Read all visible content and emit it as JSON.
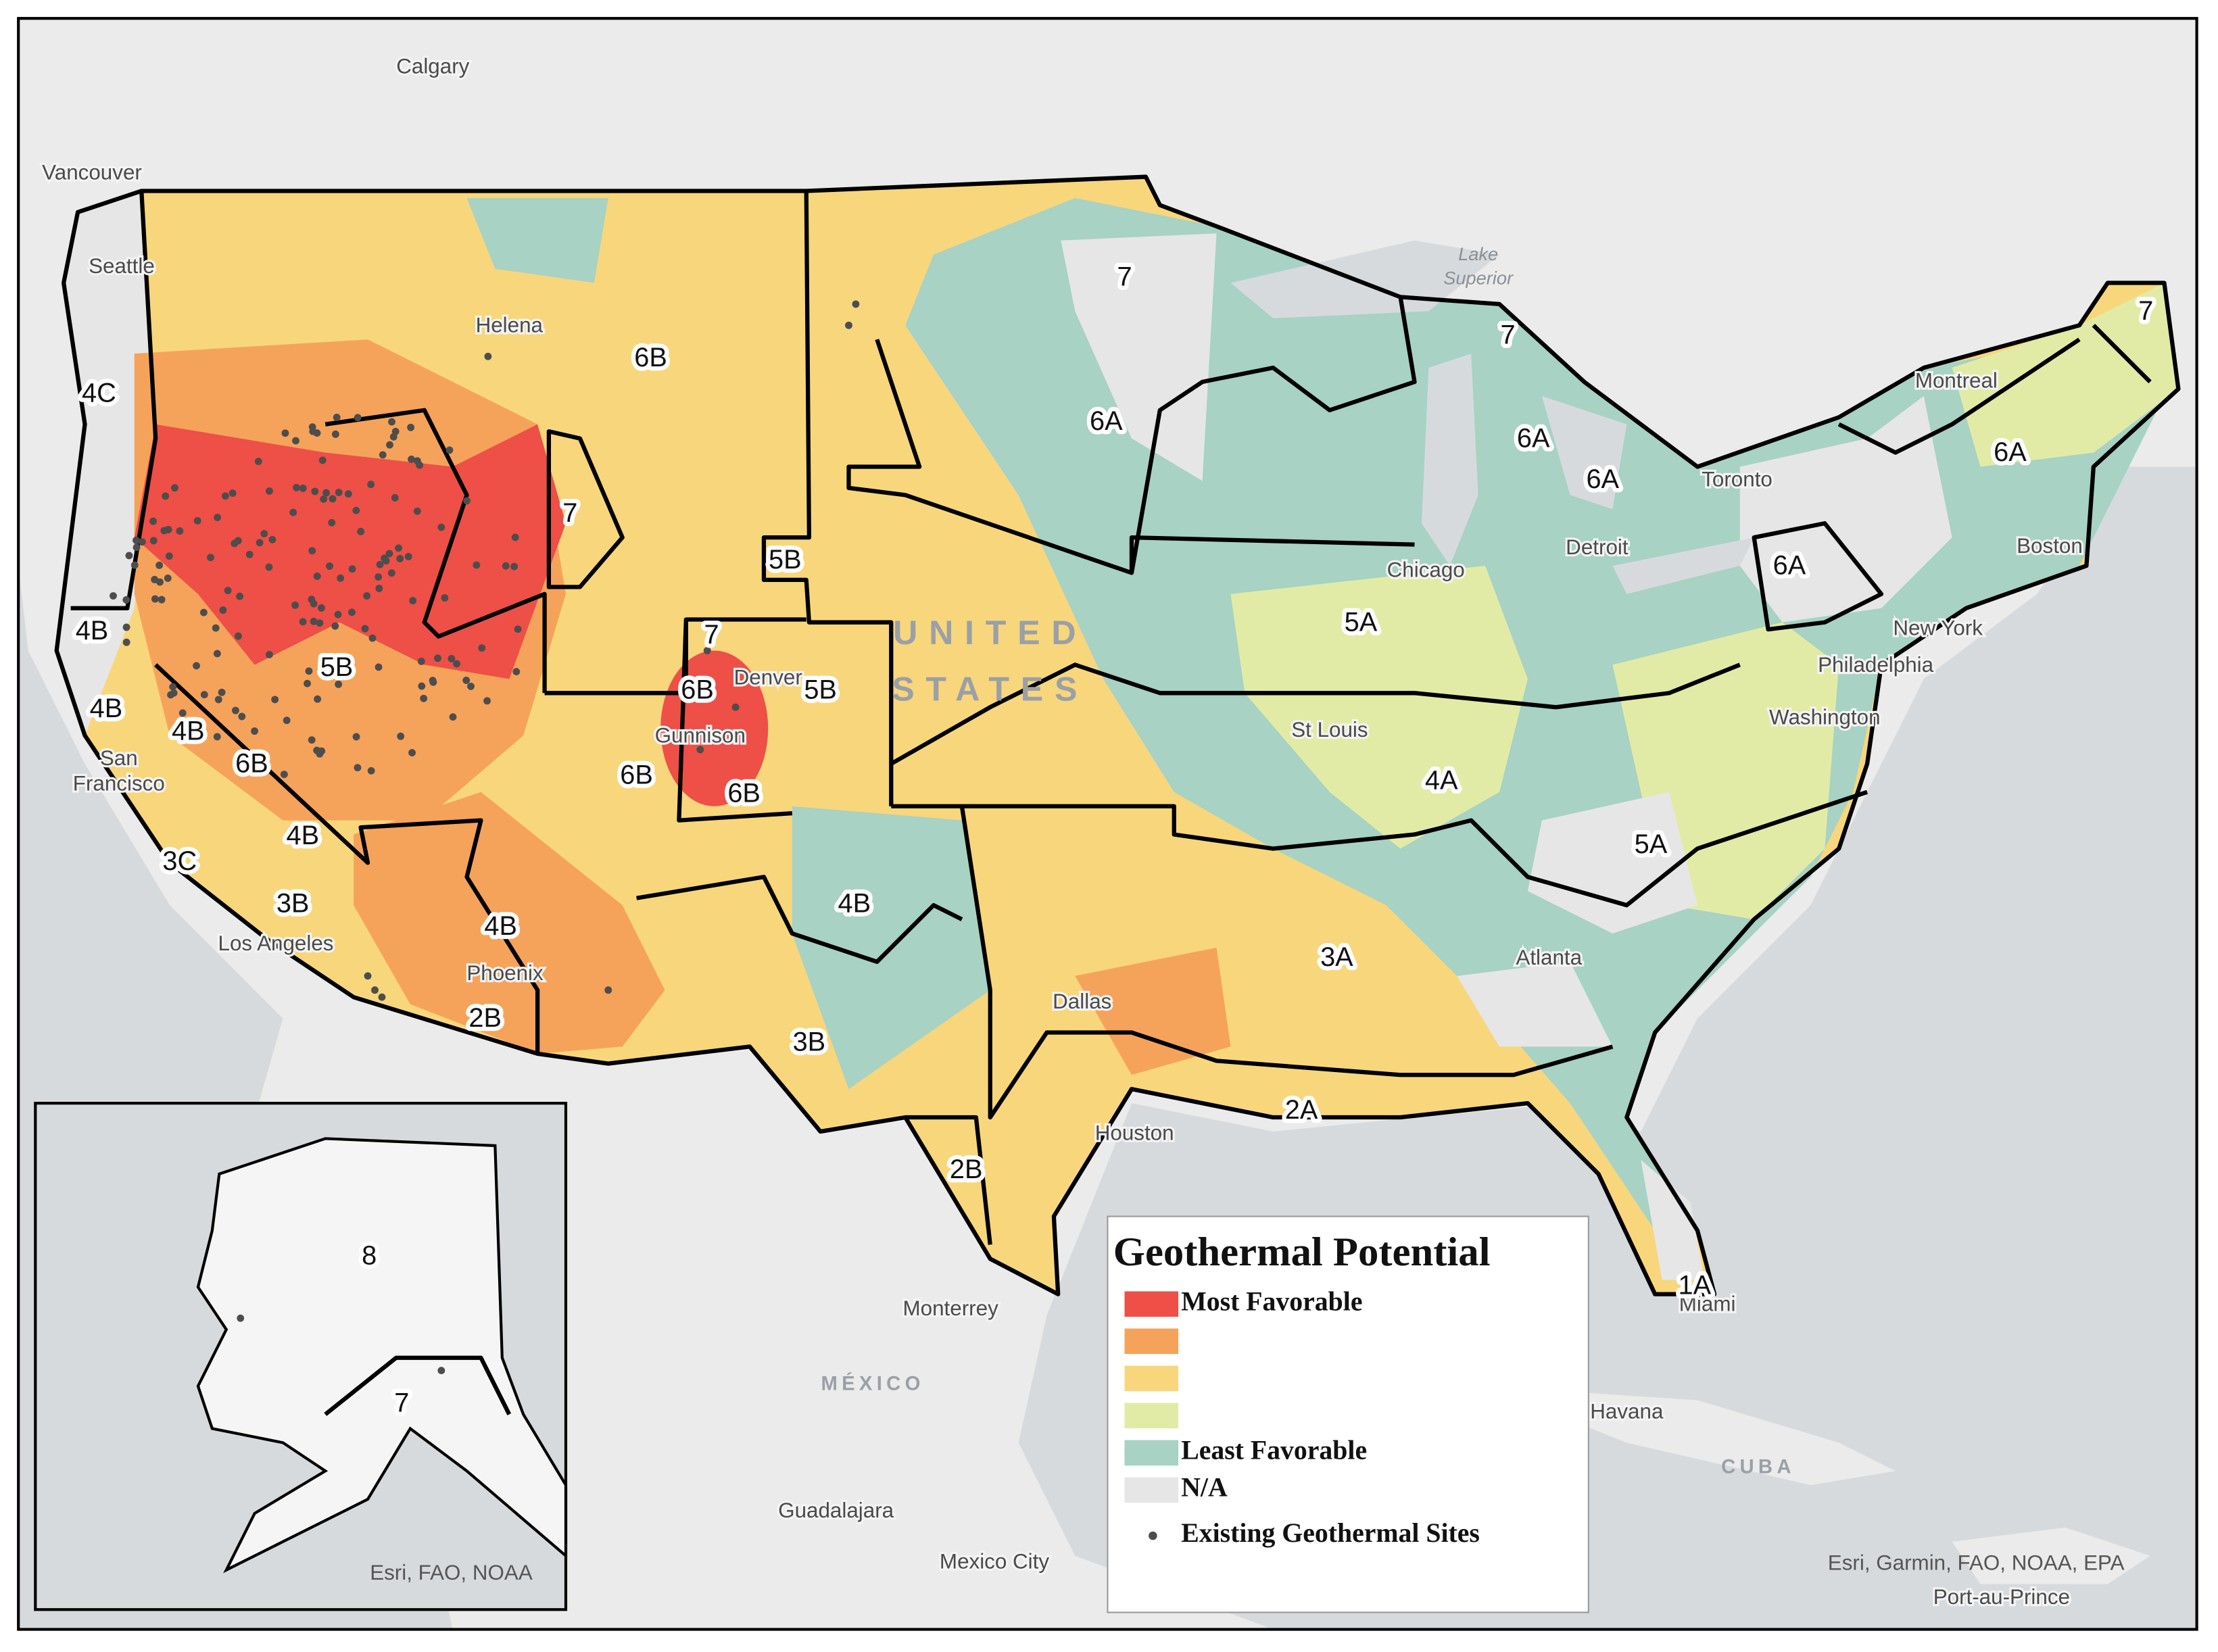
{
  "places": [
    [
      "Calgary"
    ],
    [
      "Vancouver"
    ],
    [
      "Seattle"
    ],
    [
      "Helena"
    ],
    [
      "Montreal"
    ],
    [
      "Toronto"
    ],
    [
      "Boston"
    ],
    [
      "Detroit"
    ],
    [
      "Chicago"
    ],
    [
      "New York"
    ],
    [
      "Philadelphia"
    ],
    [
      "Washington"
    ],
    [
      "St Louis"
    ],
    [
      "Denver"
    ],
    [
      "Gunnison"
    ],
    [
      "San",
      "Francisco"
    ],
    [
      "Los Angeles"
    ],
    [
      "Phoenix"
    ],
    [
      "Dallas"
    ],
    [
      "Houston"
    ],
    [
      "Atlanta"
    ],
    [
      "Miami"
    ],
    [
      "Monterrey"
    ],
    [
      "Guadalajara"
    ],
    [
      "Mexico City"
    ],
    [
      "Havana"
    ],
    [
      "Port-au-Prince"
    ]
  ],
  "water_labels": [
    [
      "Lake",
      "Superior"
    ]
  ],
  "country_labels": [
    [
      "UNITED",
      "STATES"
    ],
    [
      "MÉXICO"
    ],
    [
      "CUBA"
    ]
  ],
  "zone_labels": [
    "7",
    "6A",
    "7",
    "6A",
    "6A",
    "7",
    "6A",
    "6A",
    "5A",
    "4A",
    "5A",
    "3A",
    "2A",
    "1A",
    "6B",
    "7",
    "5B",
    "7",
    "6B",
    "5B",
    "6B",
    "6B",
    "4C",
    "4B",
    "4B",
    "4B",
    "6B",
    "5B",
    "4B",
    "3C",
    "3B",
    "4B",
    "2B",
    "3B",
    "4B",
    "2B",
    "8",
    "7"
  ],
  "attributions": [
    "Esri, FAO, NOAA",
    "Esri, Garmin, FAO, NOAA, EPA"
  ],
  "legend": {
    "title": "Geothermal Potential",
    "items": [
      {
        "label": "Most Favorable",
        "color": "#ee4f47"
      },
      {
        "color": "#f5a35b"
      },
      {
        "color": "#f8d67c"
      },
      {
        "color": "#e2eba6"
      },
      {
        "label": "Least Favorable",
        "color": "#a7d2c4"
      },
      {
        "label": "N/A",
        "color": "#e6e6e6"
      }
    ],
    "sites_label": "Existing  Geothermal Sites",
    "sites_color": "#4d4d4d"
  }
}
